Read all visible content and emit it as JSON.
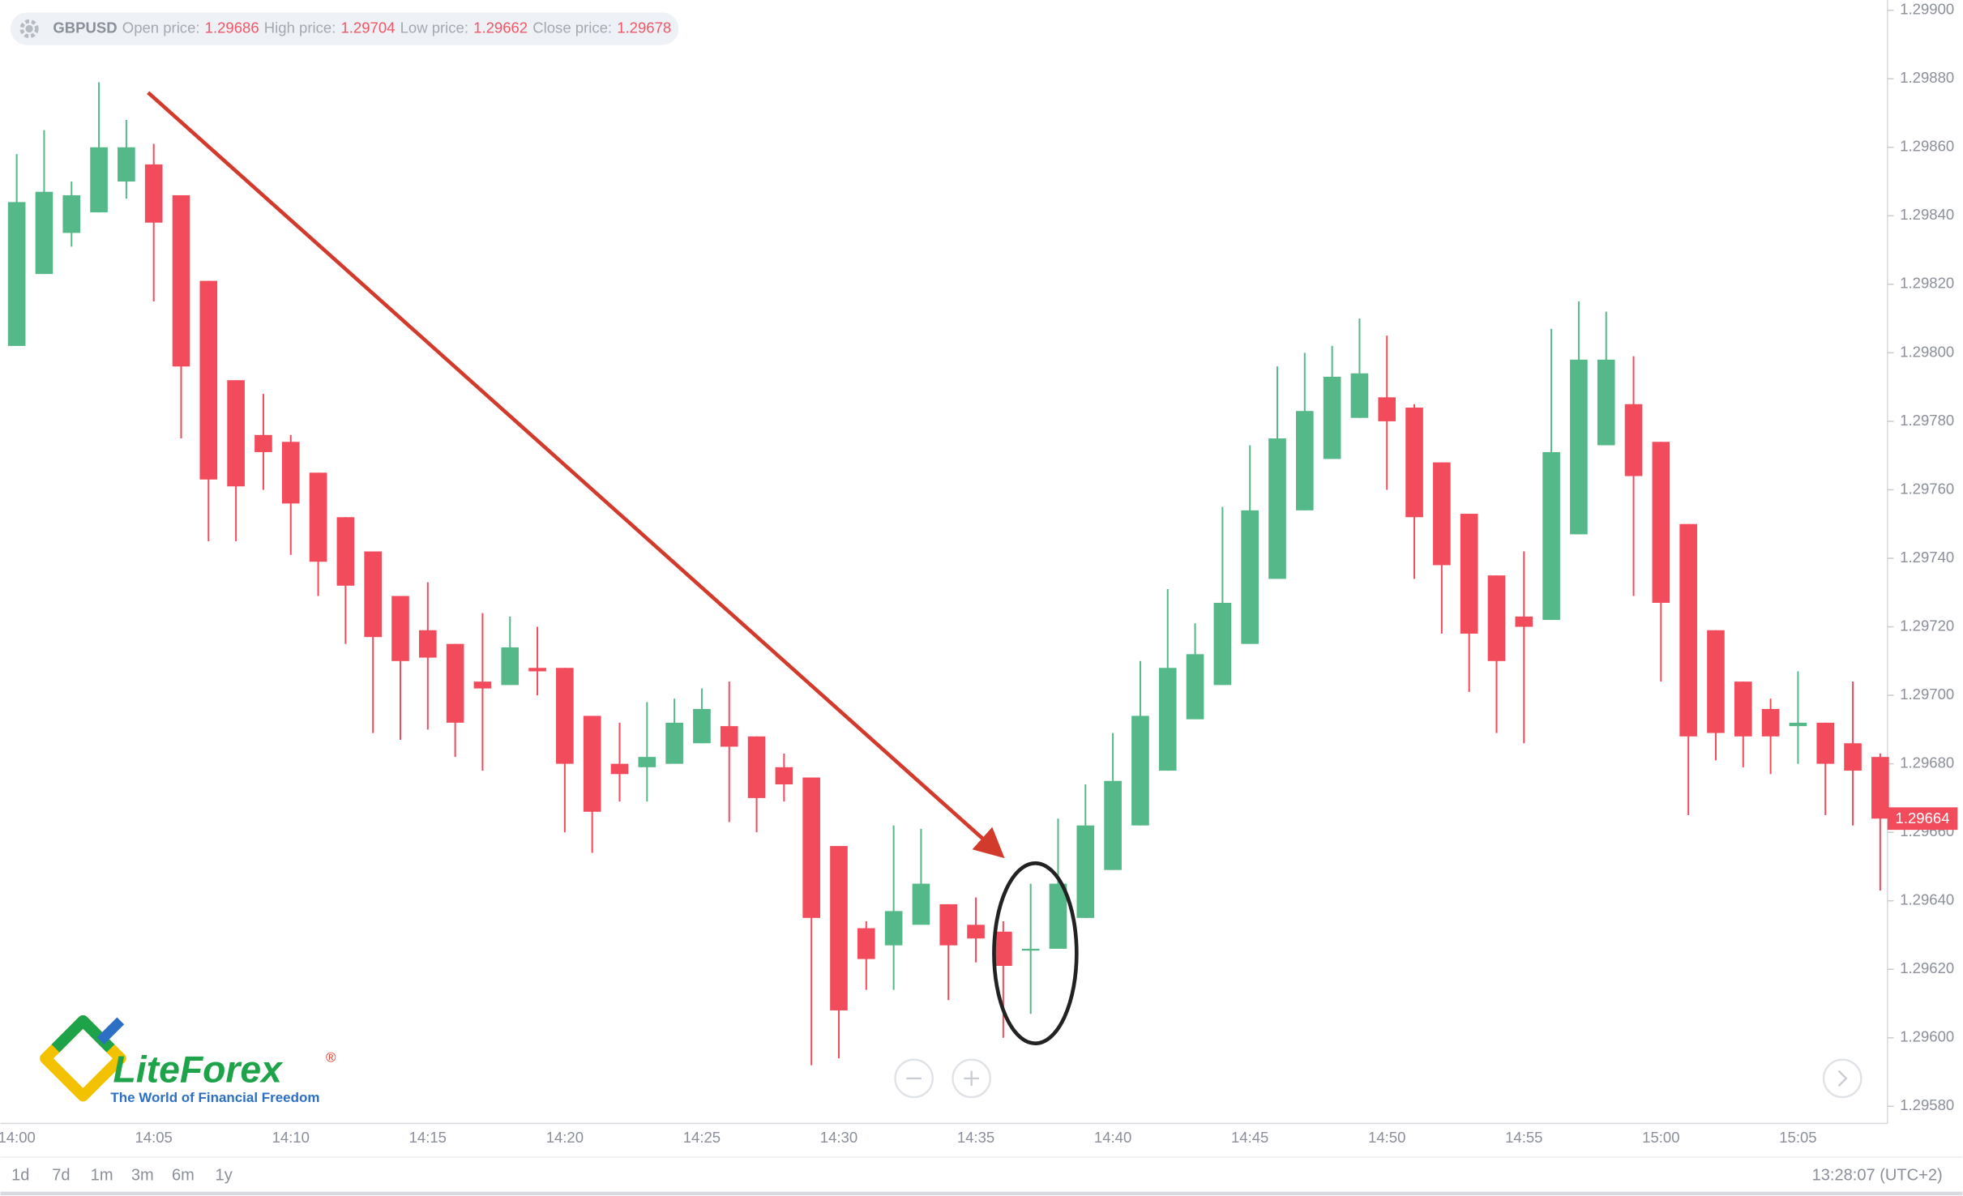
{
  "chart_data": {
    "type": "candlestick",
    "header": {
      "symbol": "GBPUSD",
      "fields": [
        {
          "label": "Open price:",
          "value": 1.29686
        },
        {
          "label": "High price:",
          "value": 1.29704
        },
        {
          "label": "Low price:",
          "value": 1.29662
        },
        {
          "label": "Close price:",
          "value": 1.29678
        }
      ]
    },
    "categories": [
      "14:00",
      null,
      null,
      null,
      null,
      "14:05",
      null,
      null,
      null,
      null,
      "14:10",
      null,
      null,
      null,
      null,
      "14:15",
      null,
      null,
      null,
      null,
      "14:20",
      null,
      null,
      null,
      null,
      "14:25",
      null,
      null,
      null,
      null,
      "14:30",
      null,
      null,
      null,
      null,
      "14:35",
      null,
      null,
      null,
      null,
      "14:40",
      null,
      null,
      null,
      null,
      "14:45",
      null,
      null,
      null,
      null,
      "14:50",
      null,
      null,
      null,
      null,
      "14:55",
      null,
      null,
      null,
      null,
      "15:00",
      null,
      null,
      null,
      null,
      "15:05",
      null,
      null,
      null
    ],
    "open": [
      1.29802,
      1.29823,
      1.29835,
      1.29841,
      1.2985,
      1.29855,
      1.29846,
      1.29821,
      1.29792,
      1.29776,
      1.29774,
      1.29765,
      1.29752,
      1.29742,
      1.29729,
      1.29719,
      1.29715,
      1.29704,
      1.29703,
      1.29708,
      1.29708,
      1.29694,
      1.2968,
      1.29679,
      1.2968,
      1.29686,
      1.29691,
      1.29688,
      1.29679,
      1.29676,
      1.29656,
      1.29632,
      1.29627,
      1.29633,
      1.29639,
      1.29633,
      1.29631,
      1.29626,
      1.29626,
      1.29635,
      1.29649,
      1.29662,
      1.29678,
      1.29693,
      1.29703,
      1.29715,
      1.29734,
      1.29754,
      1.29769,
      1.29781,
      1.29787,
      1.29784,
      1.29768,
      1.29753,
      1.29735,
      1.29723,
      1.29722,
      1.29747,
      1.29773,
      1.29785,
      1.29774,
      1.2975,
      1.29719,
      1.29704,
      1.29696,
      1.29691,
      1.29692,
      1.29686,
      1.29682
    ],
    "high": [
      1.29858,
      1.29865,
      1.2985,
      1.29879,
      1.29868,
      1.29861,
      1.29846,
      1.29821,
      1.29792,
      1.29788,
      1.29776,
      1.29765,
      1.29752,
      1.29742,
      1.29729,
      1.29733,
      1.29715,
      1.29724,
      1.29723,
      1.2972,
      1.29708,
      1.29694,
      1.29692,
      1.29698,
      1.29699,
      1.29702,
      1.29704,
      1.29688,
      1.29683,
      1.29676,
      1.29656,
      1.29634,
      1.29662,
      1.29661,
      1.29639,
      1.29641,
      1.29634,
      1.29645,
      1.29664,
      1.29674,
      1.29689,
      1.2971,
      1.29731,
      1.29721,
      1.29755,
      1.29773,
      1.29796,
      1.298,
      1.29802,
      1.2981,
      1.29805,
      1.29785,
      1.29768,
      1.29753,
      1.29735,
      1.29742,
      1.29807,
      1.29815,
      1.29812,
      1.29799,
      1.29774,
      1.2975,
      1.29719,
      1.29704,
      1.29699,
      1.29707,
      1.29692,
      1.29704,
      1.29683
    ],
    "low": [
      1.29802,
      1.29823,
      1.29831,
      1.29841,
      1.29845,
      1.29815,
      1.29775,
      1.29745,
      1.29745,
      1.2976,
      1.29741,
      1.29729,
      1.29715,
      1.29689,
      1.29687,
      1.2969,
      1.29682,
      1.29678,
      1.29703,
      1.297,
      1.2966,
      1.29654,
      1.29669,
      1.29669,
      1.2968,
      1.29686,
      1.29663,
      1.2966,
      1.29669,
      1.29592,
      1.29594,
      1.29614,
      1.29614,
      1.29633,
      1.29611,
      1.29622,
      1.296,
      1.29607,
      1.29626,
      1.29635,
      1.29649,
      1.29662,
      1.29678,
      1.29693,
      1.29703,
      1.29715,
      1.29734,
      1.29754,
      1.29769,
      1.29781,
      1.2976,
      1.29734,
      1.29718,
      1.29701,
      1.29689,
      1.29686,
      1.29722,
      1.29747,
      1.29773,
      1.29729,
      1.29704,
      1.29665,
      1.29681,
      1.29679,
      1.29677,
      1.2968,
      1.29665,
      1.29662,
      1.29643
    ],
    "close": [
      1.29844,
      1.29847,
      1.29846,
      1.2986,
      1.2986,
      1.29838,
      1.29796,
      1.29763,
      1.29761,
      1.29771,
      1.29756,
      1.29739,
      1.29732,
      1.29717,
      1.2971,
      1.29711,
      1.29692,
      1.29702,
      1.29714,
      1.29707,
      1.2968,
      1.29666,
      1.29677,
      1.29682,
      1.29692,
      1.29696,
      1.29685,
      1.2967,
      1.29674,
      1.29635,
      1.29608,
      1.29623,
      1.29637,
      1.29645,
      1.29627,
      1.29629,
      1.29621,
      1.29626,
      1.29645,
      1.29662,
      1.29675,
      1.29694,
      1.29708,
      1.29712,
      1.29727,
      1.29754,
      1.29775,
      1.29783,
      1.29793,
      1.29794,
      1.2978,
      1.29752,
      1.29738,
      1.29718,
      1.2971,
      1.2972,
      1.29771,
      1.29798,
      1.29798,
      1.29764,
      1.29727,
      1.29688,
      1.29689,
      1.29688,
      1.29688,
      1.29692,
      1.2968,
      1.29678,
      1.29664
    ],
    "up_color": "#55b888",
    "down_color": "#f24c5c",
    "ylim": [
      1.29575,
      1.29903
    ],
    "yticks": [
      {
        "value": 1.2958,
        "label": "1.29580"
      },
      {
        "value": 1.296,
        "label": "1.29600"
      },
      {
        "value": 1.2962,
        "label": "1.29620"
      },
      {
        "value": 1.2964,
        "label": "1.29640"
      },
      {
        "value": 1.2966,
        "label": "1.29660"
      },
      {
        "value": 1.2968,
        "label": "1.29680"
      },
      {
        "value": 1.297,
        "label": "1.29700"
      },
      {
        "value": 1.2972,
        "label": "1.29720"
      },
      {
        "value": 1.2974,
        "label": "1.29740"
      },
      {
        "value": 1.2976,
        "label": "1.29760"
      },
      {
        "value": 1.2978,
        "label": "1.29780"
      },
      {
        "value": 1.298,
        "label": "1.29800"
      },
      {
        "value": 1.2982,
        "label": "1.29820"
      },
      {
        "value": 1.2984,
        "label": "1.29840"
      },
      {
        "value": 1.2986,
        "label": "1.29860"
      },
      {
        "value": 1.2988,
        "label": "1.29880"
      },
      {
        "value": 1.299,
        "label": "1.29900"
      }
    ],
    "grid": false,
    "last_price": 1.29664
  },
  "toolbar": {
    "timeframes": [
      "1d",
      "7d",
      "1m",
      "3m",
      "6m",
      "1y"
    ],
    "clock": "13:28:07 (UTC+2)"
  },
  "logo": {
    "name": "LiteForex",
    "mark": "®",
    "tagline": "The World of Financial Freedom"
  }
}
